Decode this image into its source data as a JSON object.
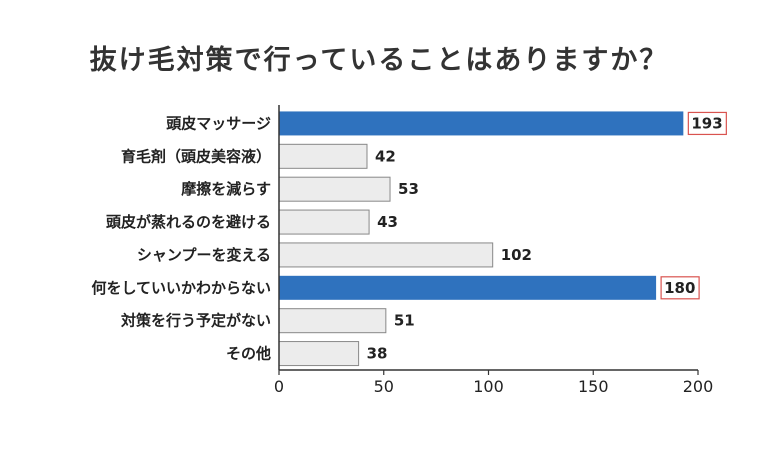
{
  "title": "抜け毛対策で行っていることはありますか？",
  "chart_data": {
    "type": "bar",
    "orientation": "horizontal",
    "title": "抜け毛対策で行っていることはありますか？",
    "categories": [
      "頭皮マッサージ",
      "育毛剤（頭皮美容液）",
      "摩擦を減らす",
      "頭皮が蒸れるのを避ける",
      "シャンプーを変える",
      "何をしていいかわからない",
      "対策を行う予定がない",
      "その他"
    ],
    "values": [
      193,
      42,
      53,
      43,
      102,
      180,
      51,
      38
    ],
    "highlighted": [
      true,
      false,
      false,
      false,
      false,
      true,
      false,
      false
    ],
    "xlim": [
      0,
      200
    ],
    "xticks": [
      0,
      50,
      100,
      150,
      200
    ],
    "grid": false,
    "colors": {
      "highlight": "#2f72be",
      "normal": "#ececec",
      "normal_border": "#888888",
      "label_box_border": "#d9534f"
    }
  }
}
